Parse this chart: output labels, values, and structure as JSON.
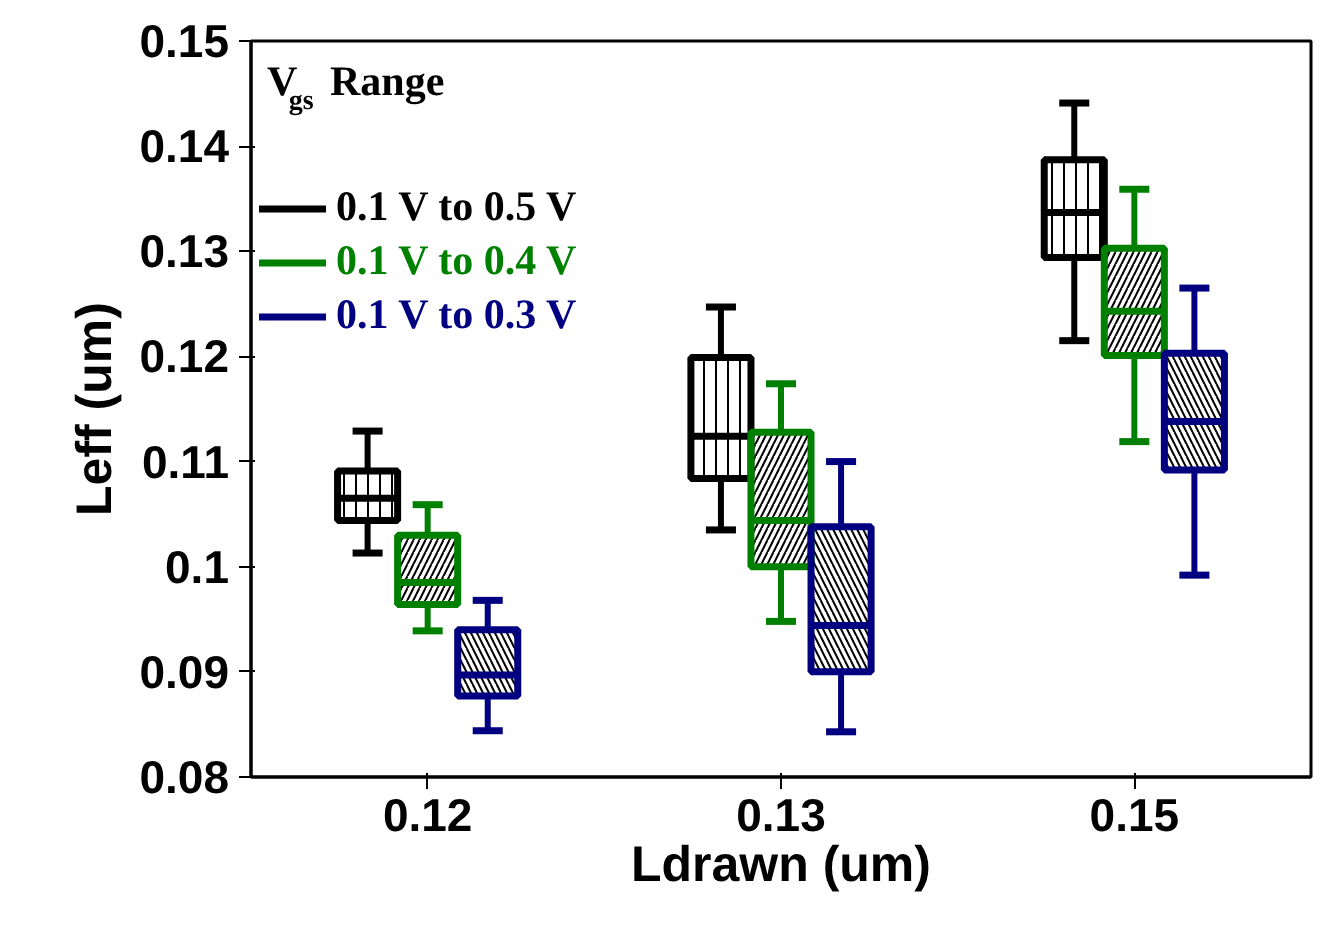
{
  "chart_data": {
    "type": "box",
    "xlabel": "Ldrawn (um)",
    "ylabel": "Leff (um)",
    "legend_title": "V$_{gs}$ Range",
    "categories": [
      "0.12",
      "0.13",
      "0.15"
    ],
    "ylim": [
      0.08,
      0.15
    ],
    "yticks": [
      0.08,
      0.09,
      {
        "value": 0.1,
        "label": "0.1"
      },
      0.11,
      0.12,
      0.13,
      0.14,
      0.15
    ],
    "grid": false,
    "legend": "top left",
    "series": [
      {
        "name": "0.1 V to 0.5 V",
        "color": "#000000",
        "boxes": [
          {
            "low": 0.1013,
            "q1": 0.1044,
            "median": 0.1065,
            "q3": 0.1091,
            "high": 0.1129
          },
          {
            "low": 0.1035,
            "q1": 0.1084,
            "median": 0.1124,
            "q3": 0.1199,
            "high": 0.1247
          },
          {
            "low": 0.1215,
            "q1": 0.1294,
            "median": 0.1337,
            "q3": 0.1387,
            "high": 0.1441
          }
        ]
      },
      {
        "name": "0.1 V to 0.4 V",
        "color": "#008000",
        "boxes": [
          {
            "low": 0.0939,
            "q1": 0.0964,
            "median": 0.0985,
            "q3": 0.103,
            "high": 0.1059
          },
          {
            "low": 0.0948,
            "q1": 0.1,
            "median": 0.1044,
            "q3": 0.1128,
            "high": 0.1174
          },
          {
            "low": 0.1119,
            "q1": 0.1201,
            "median": 0.1243,
            "q3": 0.1303,
            "high": 0.1359
          }
        ]
      },
      {
        "name": "0.1 V to 0.3 V",
        "color": "#000080",
        "boxes": [
          {
            "low": 0.0844,
            "q1": 0.0877,
            "median": 0.0897,
            "q3": 0.094,
            "high": 0.0968
          },
          {
            "low": 0.0843,
            "q1": 0.09,
            "median": 0.0944,
            "q3": 0.1038,
            "high": 0.11
          },
          {
            "low": 0.0992,
            "q1": 0.1092,
            "median": 0.1138,
            "q3": 0.1203,
            "high": 0.1265
          }
        ]
      }
    ]
  }
}
